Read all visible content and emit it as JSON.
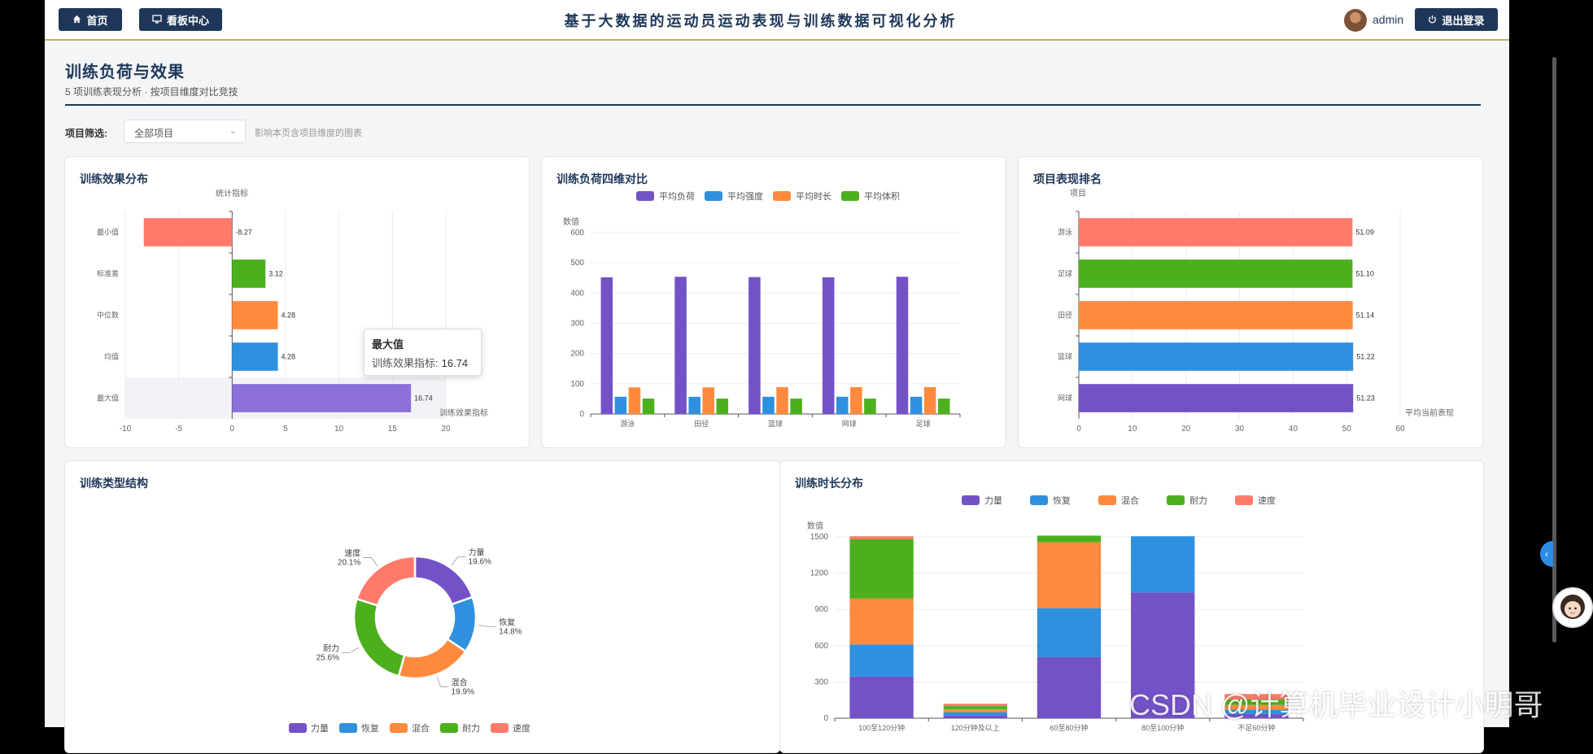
{
  "header": {
    "home_label": "首页",
    "dashboard_label": "看板中心",
    "title": "基于大数据的运动员运动表现与训练数据可视化分析",
    "username": "admin",
    "logout_label": "退出登录"
  },
  "page": {
    "title": "训练负荷与效果",
    "subtitle": "5 项训练表现分析 · 按项目维度对比竞技"
  },
  "filter": {
    "label": "项目筛选:",
    "selected": "全部项目",
    "hint": "影响本页含项目维度的图表"
  },
  "colors": {
    "navy": "#1e3759",
    "purple": "#7352c8",
    "blue": "#2e90df",
    "orange": "#ff8a3d",
    "green": "#4cb01c",
    "coral": "#ff7a6b"
  },
  "tooltip": {
    "title": "最大值",
    "label": "训练效果指标:",
    "value": "16.74"
  },
  "watermark": "CSDN @计算机毕业设计小明哥",
  "chart_data": [
    {
      "id": "effect",
      "title": "训练效果分布",
      "type": "bar",
      "orientation": "horizontal",
      "y_axis_name": "统计指标",
      "x_axis_name": "训练效果指标",
      "categories": [
        "最小值",
        "标准差",
        "中位数",
        "均值",
        "最大值"
      ],
      "values": [
        -8.27,
        3.12,
        4.28,
        4.28,
        16.74
      ],
      "value_labels": [
        "-8.27",
        "3.12",
        "4.28",
        "4.28",
        "16.74"
      ],
      "bar_colors": [
        "#ff7a6b",
        "#4cb01c",
        "#ff8a3d",
        "#2e90df",
        "#8c6fd8"
      ],
      "xlim": [
        -10,
        20
      ],
      "x_ticks": [
        "-10",
        "-5",
        "0",
        "5",
        "10",
        "15",
        "20"
      ]
    },
    {
      "id": "load",
      "title": "训练负荷四维对比",
      "type": "bar",
      "y_axis_name": "数值",
      "categories": [
        "游泳",
        "田径",
        "篮球",
        "网球",
        "足球"
      ],
      "series": [
        {
          "name": "平均负荷",
          "color": "#7352c8",
          "values": [
            452,
            454,
            453,
            452,
            454
          ]
        },
        {
          "name": "平均强度",
          "color": "#2e90df",
          "values": [
            57,
            57,
            57,
            57,
            57
          ]
        },
        {
          "name": "平均时长",
          "color": "#ff8a3d",
          "values": [
            88,
            88,
            89,
            89,
            89
          ]
        },
        {
          "name": "平均体积",
          "color": "#4cb01c",
          "values": [
            51,
            51,
            51,
            51,
            51
          ]
        }
      ],
      "ylim": [
        0,
        600
      ],
      "y_ticks": [
        "0",
        "100",
        "200",
        "300",
        "400",
        "500",
        "600"
      ]
    },
    {
      "id": "rank",
      "title": "项目表现排名",
      "type": "bar",
      "orientation": "horizontal",
      "y_axis_name": "项目",
      "x_axis_name": "平均当前表现",
      "categories": [
        "游泳",
        "足球",
        "田径",
        "篮球",
        "网球"
      ],
      "values": [
        51.09,
        51.1,
        51.14,
        51.22,
        51.23
      ],
      "value_labels": [
        "51.09",
        "51.10",
        "51.14",
        "51.22",
        "51.23"
      ],
      "bar_colors": [
        "#ff7a6b",
        "#4cb01c",
        "#ff8a3d",
        "#2e90df",
        "#7352c8"
      ],
      "xlim": [
        0,
        60
      ],
      "x_ticks": [
        "0",
        "10",
        "20",
        "30",
        "40",
        "50",
        "60"
      ]
    },
    {
      "id": "types",
      "title": "训练类型结构",
      "type": "pie",
      "slices": [
        {
          "name": "力量",
          "value": 19.6,
          "label": "19.6%",
          "color": "#7352c8"
        },
        {
          "name": "恢复",
          "value": 14.8,
          "label": "14.8%",
          "color": "#2e90df"
        },
        {
          "name": "混合",
          "value": 19.9,
          "label": "19.9%",
          "color": "#ff8a3d"
        },
        {
          "name": "耐力",
          "value": 25.6,
          "label": "25.6%",
          "color": "#4cb01c"
        },
        {
          "name": "速度",
          "value": 20.1,
          "label": "20.1%",
          "color": "#ff7a6b"
        }
      ],
      "legend": [
        "力量",
        "恢复",
        "混合",
        "耐力",
        "速度"
      ]
    },
    {
      "id": "duration",
      "title": "训练时长分布",
      "type": "bar",
      "stacked": true,
      "y_axis_name": "数值",
      "categories": [
        "100至120分钟",
        "120分钟及以上",
        "60至80分钟",
        "80至100分钟",
        "不足60分钟"
      ],
      "series": [
        {
          "name": "力量",
          "color": "#7352c8",
          "values": [
            345,
            25,
            505,
            1040,
            35
          ]
        },
        {
          "name": "恢复",
          "color": "#2e90df",
          "values": [
            265,
            25,
            405,
            465,
            35
          ]
        },
        {
          "name": "混合",
          "color": "#ff8a3d",
          "values": [
            380,
            25,
            545,
            0,
            40
          ]
        },
        {
          "name": "耐力",
          "color": "#4cb01c",
          "values": [
            490,
            25,
            55,
            0,
            45
          ]
        },
        {
          "name": "速度",
          "color": "#ff7a6b",
          "values": [
            25,
            20,
            0,
            0,
            45
          ]
        }
      ],
      "ylim": [
        0,
        1500
      ],
      "y_ticks": [
        "0",
        "300",
        "600",
        "900",
        "1200",
        "1500"
      ]
    }
  ]
}
